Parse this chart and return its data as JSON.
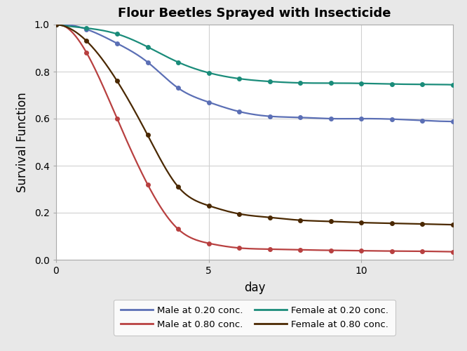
{
  "title": "Flour Beetles Sprayed with Insecticide",
  "xlabel": "day",
  "ylabel": "Survival Function",
  "xlim": [
    0,
    13
  ],
  "ylim": [
    0.0,
    1.0
  ],
  "xticks": [
    0,
    5,
    10
  ],
  "yticks": [
    0.0,
    0.2,
    0.4,
    0.6,
    0.8,
    1.0
  ],
  "plot_bg": "#ffffff",
  "fig_bg": "#e8e8e8",
  "grid_color": "#d0d0d0",
  "series": {
    "male_020": {
      "label": "Male at 0.20 conc.",
      "color": "#5b6fb5",
      "x": [
        0,
        1,
        2,
        3,
        4,
        5,
        6,
        7,
        8,
        9,
        10,
        11,
        12,
        13
      ],
      "y": [
        1.0,
        0.98,
        0.92,
        0.84,
        0.73,
        0.67,
        0.63,
        0.61,
        0.605,
        0.6,
        0.6,
        0.598,
        0.592,
        0.588
      ]
    },
    "male_080": {
      "label": "Male at 0.80 conc.",
      "color": "#b84040",
      "x": [
        0,
        1,
        2,
        3,
        4,
        5,
        6,
        7,
        8,
        9,
        10,
        11,
        12,
        13
      ],
      "y": [
        1.0,
        0.88,
        0.6,
        0.32,
        0.13,
        0.07,
        0.05,
        0.045,
        0.042,
        0.04,
        0.038,
        0.037,
        0.036,
        0.034
      ]
    },
    "female_020": {
      "label": "Female at 0.20 conc.",
      "color": "#1a8c7a",
      "x": [
        0,
        1,
        2,
        3,
        4,
        5,
        6,
        7,
        8,
        9,
        10,
        11,
        12,
        13
      ],
      "y": [
        1.0,
        0.985,
        0.96,
        0.905,
        0.84,
        0.795,
        0.77,
        0.758,
        0.752,
        0.751,
        0.75,
        0.747,
        0.746,
        0.744
      ]
    },
    "female_080": {
      "label": "Female at 0.80 conc.",
      "color": "#4a2800",
      "x": [
        0,
        1,
        2,
        3,
        4,
        5,
        6,
        7,
        8,
        9,
        10,
        11,
        12,
        13
      ],
      "y": [
        1.0,
        0.93,
        0.76,
        0.53,
        0.31,
        0.23,
        0.195,
        0.18,
        0.168,
        0.163,
        0.158,
        0.155,
        0.152,
        0.149
      ]
    }
  },
  "legend_order": [
    "male_020",
    "female_020",
    "male_080",
    "female_080"
  ]
}
